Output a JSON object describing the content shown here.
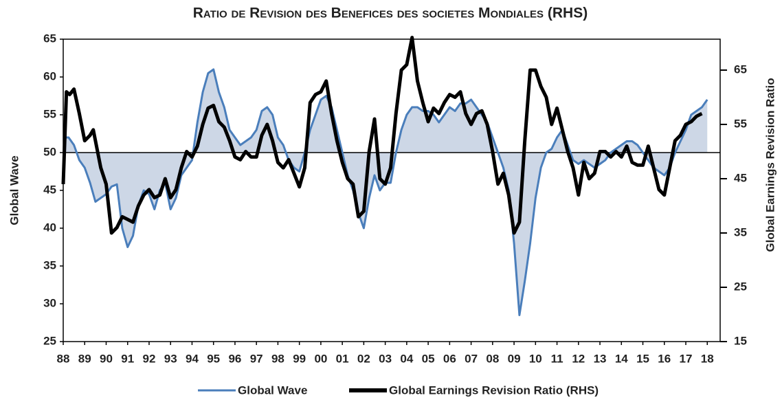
{
  "chart_data": {
    "type": "line",
    "title": "Ratio de Revision des Benefices des societes Mondiales (RHS)",
    "ylabel": "Global Wave",
    "y2label": "Global Earnings Revision Ratio",
    "xlim": [
      1988,
      2018.6
    ],
    "ylim": [
      25,
      65
    ],
    "y2lim": [
      15,
      70.7
    ],
    "yticks": [
      25,
      30,
      35,
      40,
      45,
      50,
      55,
      60,
      65
    ],
    "y2ticks": [
      15,
      25,
      35,
      45,
      55,
      65
    ],
    "xticks": [
      {
        "value": 1988,
        "label": "88"
      },
      {
        "value": 1989,
        "label": "89"
      },
      {
        "value": 1990,
        "label": "90"
      },
      {
        "value": 1991,
        "label": "91"
      },
      {
        "value": 1992,
        "label": "92"
      },
      {
        "value": 1993,
        "label": "93"
      },
      {
        "value": 1994,
        "label": "94"
      },
      {
        "value": 1995,
        "label": "95"
      },
      {
        "value": 1996,
        "label": "96"
      },
      {
        "value": 1997,
        "label": "97"
      },
      {
        "value": 1998,
        "label": "98"
      },
      {
        "value": 1999,
        "label": "99"
      },
      {
        "value": 2000,
        "label": "00"
      },
      {
        "value": 2001,
        "label": "01"
      },
      {
        "value": 2002,
        "label": "02"
      },
      {
        "value": 2003,
        "label": "03"
      },
      {
        "value": 2004,
        "label": "04"
      },
      {
        "value": 2005,
        "label": "05"
      },
      {
        "value": 2006,
        "label": "06"
      },
      {
        "value": 2007,
        "label": "07"
      },
      {
        "value": 2008,
        "label": "08"
      },
      {
        "value": 2009,
        "label": "09"
      },
      {
        "value": 2010,
        "label": "10"
      },
      {
        "value": 2011,
        "label": "11"
      },
      {
        "value": 2012,
        "label": "12"
      },
      {
        "value": 2013,
        "label": "13"
      },
      {
        "value": 2014,
        "label": "14"
      },
      {
        "value": 2015,
        "label": "15"
      },
      {
        "value": 2016,
        "label": "16"
      },
      {
        "value": 2017,
        "label": "17"
      },
      {
        "value": 2018,
        "label": "18"
      }
    ],
    "reference_line": 50,
    "series": [
      {
        "name": "Global Wave",
        "color": "#4a7ebb",
        "fill": "#cdd7e6",
        "axis": "y",
        "x": [
          1988,
          1988.25,
          1988.5,
          1988.75,
          1989,
          1989.25,
          1989.5,
          1989.75,
          1990,
          1990.25,
          1990.5,
          1990.75,
          1991,
          1991.25,
          1991.5,
          1991.75,
          1992,
          1992.25,
          1992.5,
          1992.75,
          1993,
          1993.25,
          1993.5,
          1993.75,
          1994,
          1994.25,
          1994.5,
          1994.75,
          1995,
          1995.25,
          1995.5,
          1995.75,
          1996,
          1996.25,
          1996.5,
          1996.75,
          1997,
          1997.25,
          1997.5,
          1997.75,
          1998,
          1998.25,
          1998.5,
          1998.75,
          1999,
          1999.25,
          1999.5,
          1999.75,
          2000,
          2000.25,
          2000.5,
          2000.75,
          2001,
          2001.25,
          2001.5,
          2001.75,
          2002,
          2002.25,
          2002.5,
          2002.75,
          2003,
          2003.25,
          2003.5,
          2003.75,
          2004,
          2004.25,
          2004.5,
          2004.75,
          2005,
          2005.25,
          2005.5,
          2005.75,
          2006,
          2006.25,
          2006.5,
          2006.75,
          2007,
          2007.25,
          2007.5,
          2007.75,
          2008,
          2008.25,
          2008.5,
          2008.75,
          2009,
          2009.25,
          2009.5,
          2009.75,
          2010,
          2010.25,
          2010.5,
          2010.75,
          2011,
          2011.25,
          2011.5,
          2011.75,
          2012,
          2012.25,
          2012.5,
          2012.75,
          2013,
          2013.25,
          2013.5,
          2013.75,
          2014,
          2014.25,
          2014.5,
          2014.75,
          2015,
          2015.25,
          2015.5,
          2015.75,
          2016,
          2016.25,
          2016.5,
          2016.75,
          2017,
          2017.25,
          2017.5,
          2017.75,
          2018
        ],
        "values": [
          52,
          52,
          51,
          49,
          48,
          46,
          43.5,
          44,
          44.5,
          45.5,
          45.8,
          40,
          37.5,
          39,
          43,
          45,
          44.5,
          42.5,
          45,
          46,
          42.5,
          44,
          47,
          48,
          49,
          54,
          58,
          60.5,
          61,
          58,
          56,
          53,
          52,
          51,
          51.5,
          52,
          53,
          55.5,
          56,
          55,
          52,
          51,
          49,
          48,
          47.5,
          50,
          53,
          55,
          57,
          57.5,
          56,
          53,
          50,
          47,
          45,
          42,
          40,
          44,
          47,
          45,
          46,
          46,
          50,
          53,
          55,
          56,
          56,
          55.5,
          55.5,
          55,
          54,
          55,
          56,
          55.5,
          56.5,
          56.5,
          57,
          56,
          55,
          54,
          52,
          50,
          48,
          45,
          38,
          28.5,
          33,
          38,
          44,
          48,
          50,
          50.5,
          52,
          53,
          51,
          49,
          48.5,
          49,
          48.5,
          48,
          48.5,
          49,
          50,
          50.5,
          51,
          51.5,
          51.5,
          51,
          50,
          49,
          48,
          47.5,
          47,
          48,
          50,
          51.5,
          53,
          55,
          55.5,
          56,
          57
        ]
      },
      {
        "name": "Global Earnings Revision Ratio (RHS)",
        "color": "#000000",
        "axis": "y2",
        "x": [
          1988,
          1988.15,
          1988.3,
          1988.5,
          1988.75,
          1989,
          1989.25,
          1989.4,
          1989.75,
          1990,
          1990.25,
          1990.5,
          1990.75,
          1991,
          1991.25,
          1991.5,
          1991.75,
          1992,
          1992.25,
          1992.5,
          1992.75,
          1993,
          1993.25,
          1993.5,
          1993.75,
          1994,
          1994.25,
          1994.5,
          1994.75,
          1995,
          1995.25,
          1995.5,
          1995.75,
          1996,
          1996.25,
          1996.5,
          1996.75,
          1997,
          1997.25,
          1997.5,
          1997.75,
          1998,
          1998.25,
          1998.5,
          1998.75,
          1999,
          1999.25,
          1999.5,
          1999.75,
          2000,
          2000.25,
          2000.5,
          2000.75,
          2001,
          2001.25,
          2001.5,
          2001.75,
          2002,
          2002.25,
          2002.5,
          2002.75,
          2003,
          2003.25,
          2003.5,
          2003.75,
          2004,
          2004.25,
          2004.5,
          2004.75,
          2005,
          2005.25,
          2005.5,
          2005.75,
          2006,
          2006.25,
          2006.5,
          2006.75,
          2007,
          2007.25,
          2007.5,
          2007.75,
          2008,
          2008.25,
          2008.5,
          2008.75,
          2009,
          2009.25,
          2009.5,
          2009.75,
          2010,
          2010.25,
          2010.5,
          2010.75,
          2011,
          2011.25,
          2011.5,
          2011.75,
          2012,
          2012.25,
          2012.5,
          2012.75,
          2013,
          2013.25,
          2013.5,
          2013.75,
          2014,
          2014.25,
          2014.5,
          2014.75,
          2015,
          2015.25,
          2015.5,
          2015.75,
          2016,
          2016.25,
          2016.5,
          2016.75,
          2017,
          2017.25,
          2017.5,
          2017.75
        ],
        "values": [
          44,
          61,
          60.5,
          61.5,
          57,
          52,
          53,
          54,
          47,
          44,
          35,
          36,
          38,
          37.5,
          37,
          40,
          42,
          43,
          41.5,
          42,
          45,
          41.5,
          43,
          47,
          50,
          49,
          51,
          55,
          58,
          58.5,
          55.5,
          54.5,
          52,
          49,
          48.5,
          50,
          49,
          49,
          53,
          55,
          52,
          48,
          47,
          48.5,
          46,
          43.5,
          47,
          59,
          60.5,
          61,
          63,
          57,
          52,
          48,
          45,
          44,
          38,
          39,
          50,
          56,
          45,
          44,
          47,
          57,
          65,
          66,
          71,
          63,
          59,
          55.5,
          58,
          57,
          59,
          60.5,
          60,
          61,
          57,
          55,
          57,
          57.5,
          55,
          50,
          44,
          46,
          42,
          35,
          37,
          52,
          65,
          65,
          62,
          60,
          55,
          58,
          54,
          50,
          47,
          42,
          48,
          45,
          46,
          50,
          50,
          49,
          50,
          49,
          51,
          48,
          47.5,
          47.5,
          51,
          47,
          43,
          42,
          47,
          52,
          53,
          55,
          55.5,
          56.5,
          57
        ]
      }
    ]
  }
}
